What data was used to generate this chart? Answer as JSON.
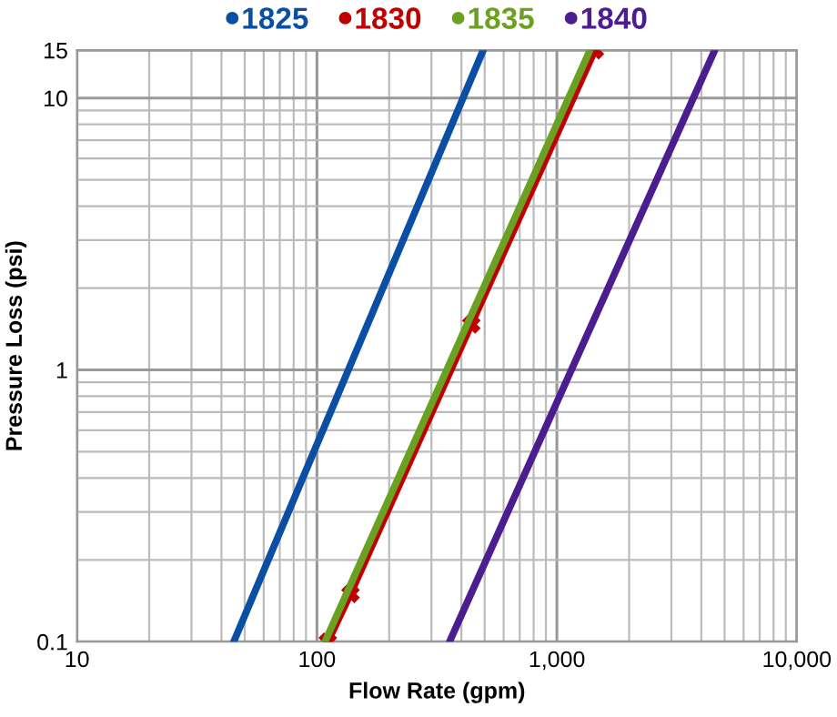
{
  "chart_data": {
    "type": "line",
    "xlabel": "Flow Rate (gpm)",
    "ylabel": "Pressure Loss (psi)",
    "log": "xy",
    "xlim": [
      10,
      10000
    ],
    "ylim": [
      0.1,
      15
    ],
    "xticks": [
      10,
      100,
      {
        "value": 1000,
        "label": "1,000"
      },
      {
        "value": 10000,
        "label": "10,000"
      }
    ],
    "yticks": [
      0.1,
      1,
      10,
      15
    ],
    "grid": true,
    "legend": "top",
    "marker": "none",
    "series": [
      {
        "name": "1825",
        "color": "#0a4fa3",
        "x": [
          45,
          493
        ],
        "values": [
          0.1,
          15
        ]
      },
      {
        "name": "1830",
        "color": "#c00000",
        "x": [
          111,
          138,
          440,
          1440
        ],
        "values": [
          0.1,
          0.15,
          1.47,
          15
        ],
        "marker": "cross"
      },
      {
        "name": "1835",
        "color": "#6aa121",
        "x": [
          108,
          1374
        ],
        "values": [
          0.1,
          15
        ]
      },
      {
        "name": "1840",
        "color": "#4b1d8f",
        "x": [
          357,
          4550
        ],
        "values": [
          0.1,
          15
        ]
      }
    ]
  }
}
